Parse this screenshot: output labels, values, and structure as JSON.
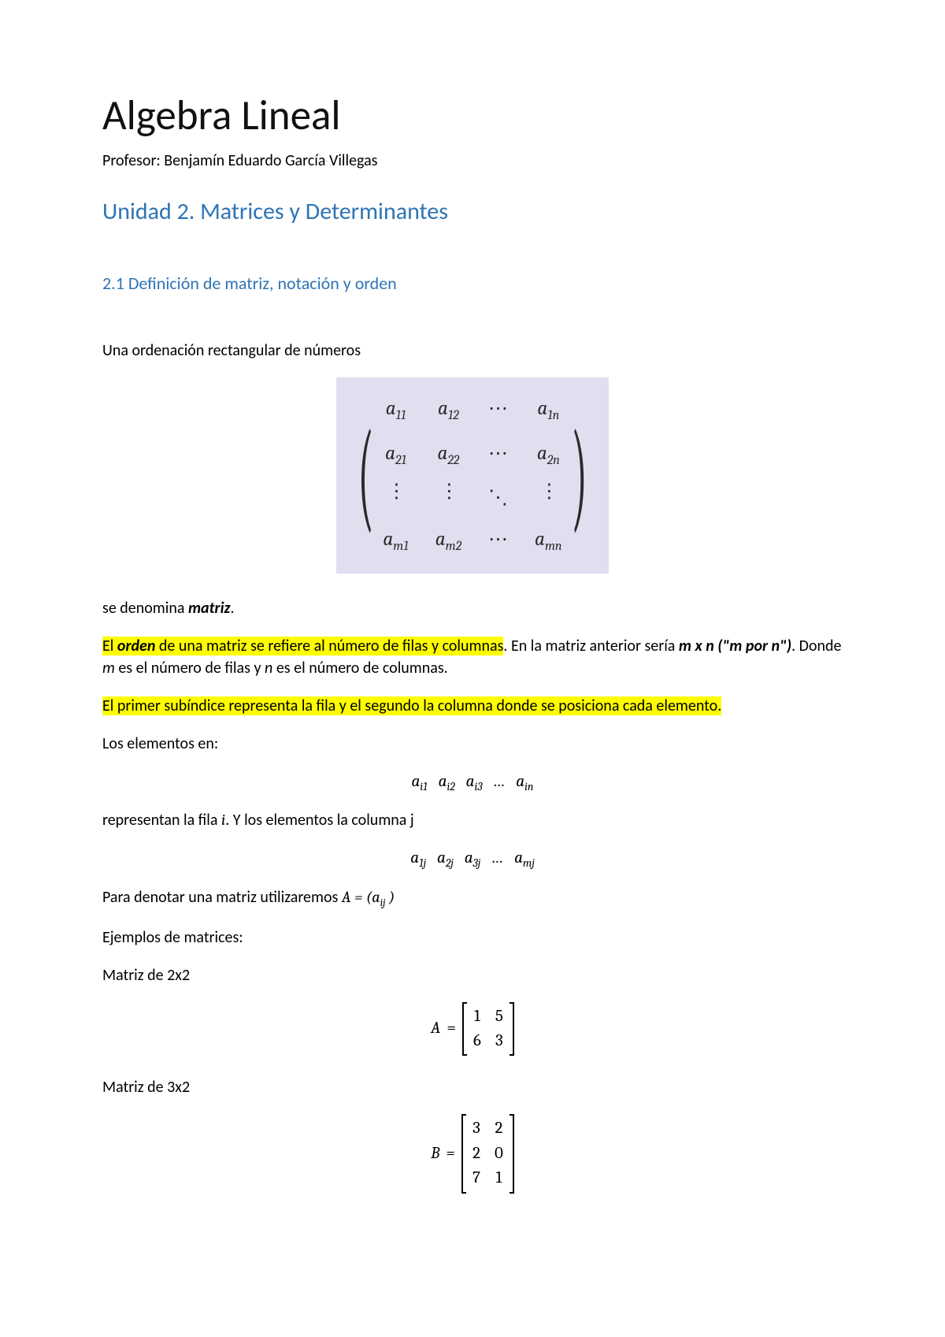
{
  "title": "Algebra Lineal",
  "professor": "Profesor: Benjamín Eduardo García Villegas",
  "unit_heading": "Unidad 2. Matrices y Determinantes",
  "sub_heading": "2.1 Definición de matriz, notación y orden",
  "p_intro": "Una ordenación rectangular de números",
  "generic_matrix": {
    "background_color": "#e3deef",
    "cells": [
      [
        "a",
        "11",
        "a",
        "12",
        "⋯",
        "a",
        "1n"
      ],
      [
        "a",
        "21",
        "a",
        "22",
        "⋯",
        "a",
        "2n"
      ],
      [
        "⋮",
        "",
        "⋮",
        "",
        "⋱",
        "⋮",
        ""
      ],
      [
        "a",
        "m1",
        "a",
        "m2",
        "⋯",
        "a",
        "mn"
      ]
    ]
  },
  "p_denomina_1": "se denomina ",
  "p_denomina_2": "matriz",
  "p_denomina_3": ".",
  "p_orden_hl_1": "El ",
  "p_orden_hl_2": "orden",
  "p_orden_hl_3": " de una matriz se refiere al número de filas y columnas",
  "p_orden_rest_1": ". En la matriz anterior sería ",
  "p_orden_mxn": "m x n (\"m por n\")",
  "p_orden_rest_2": ". Donde ",
  "p_orden_m": "m",
  "p_orden_rest_3": " es el número de filas y ",
  "p_orden_n": "n",
  "p_orden_rest_4": " es el número de columnas.",
  "p_subindice_hl": "El primer subíndice representa la fila y el segundo la columna donde se posiciona cada elemento.",
  "p_elementos_en": "Los elementos en:",
  "row_i": {
    "items": [
      "a_{i1}",
      "a_{i2}",
      "a_{i3}",
      "…",
      "a_{in}"
    ]
  },
  "p_representan_1": "representan la fila ",
  "p_representan_i": "i",
  "p_representan_2": ". Y los elementos la columna j",
  "col_j": {
    "items": [
      "a_{1j}",
      "a_{2j}",
      "a_{3j}",
      "…",
      "a_{mj}"
    ]
  },
  "p_denote_1": "Para denotar una matriz utilizaremos ",
  "p_denote_math": "A = (a_{ij} )",
  "p_ejemplos": "Ejemplos de matrices:",
  "p_m2x2": "Matriz de 2x2",
  "matrix_A": {
    "name": "A",
    "rows": [
      [
        "1",
        "5"
      ],
      [
        "6",
        "3"
      ]
    ]
  },
  "p_m3x2": "Matriz de 3x2",
  "matrix_B": {
    "name": "B",
    "rows": [
      [
        "3",
        "2"
      ],
      [
        "2",
        "0"
      ],
      [
        "7",
        "1"
      ]
    ]
  },
  "colors": {
    "heading": "#2e74b5",
    "highlight": "#fdfd00",
    "matrix_bg": "#e3deef"
  }
}
